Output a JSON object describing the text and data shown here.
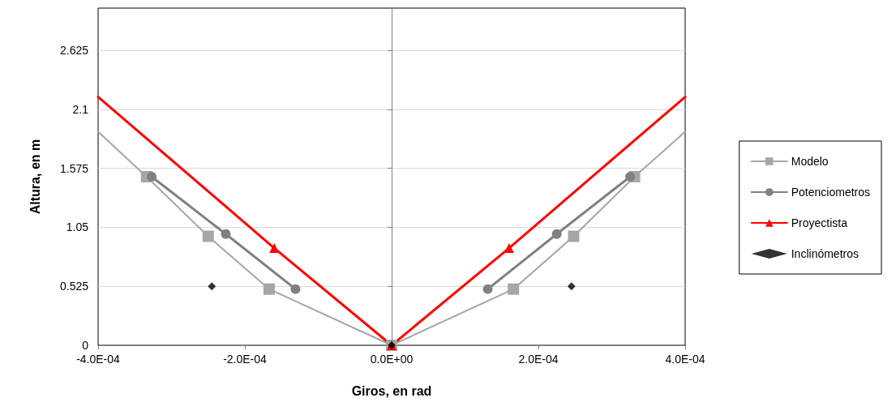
{
  "chart_data": {
    "type": "line",
    "xlabel": "Giros, en rad",
    "ylabel": "Altura, en m",
    "xlim": [
      -0.0004,
      0.0004
    ],
    "xticks": [
      {
        "value": -0.0004,
        "label": "-4.0E-04"
      },
      {
        "value": -0.0002,
        "label": "-2.0E-04"
      },
      {
        "value": 0,
        "label": "0.0E+00"
      },
      {
        "value": 0.0002,
        "label": "2.0E-04"
      },
      {
        "value": 0.0004,
        "label": "4.0E-04"
      }
    ],
    "ylim": [
      0,
      3
    ],
    "yticks": [
      0,
      0.525,
      1.05,
      1.575,
      2.1,
      2.625
    ],
    "grid": "y",
    "legend": "right",
    "ref_lines": [
      {
        "axis": "x",
        "value": 0,
        "color": "#808080"
      }
    ],
    "series": [
      {
        "name": "Modelo",
        "marker": "square",
        "color": "#a6a6a6",
        "x": [
          -0.000334,
          -0.00025,
          -0.000167,
          0,
          0.000166,
          0.000248,
          0.000331
        ],
        "values": [
          1.5,
          0.97,
          0.5,
          0,
          0.5,
          0.97,
          1.5
        ]
      },
      {
        "marker": "none",
        "color": "#a6a6a6",
        "x": [
          -0.0004,
          -0.000334,
          0,
          0.000331,
          0.0004
        ],
        "values": [
          1.9,
          1.5,
          null,
          1.5,
          1.9
        ]
      },
      {
        "name": "Potenciometros",
        "marker": "circle",
        "color": "#808080",
        "x": [
          -0.000327,
          -0.000226,
          -0.000131,
          0,
          0.000131,
          0.000225,
          0.000325
        ],
        "values": [
          1.5,
          0.99,
          0.5,
          null,
          0.5,
          0.99,
          1.5
        ]
      },
      {
        "name": "Proyectista",
        "marker": "triangle",
        "color": "#ff0000",
        "x": [
          -0.00016,
          0,
          0.00016
        ],
        "values": [
          0.865,
          0,
          0.865
        ]
      },
      {
        "marker": "none",
        "color": "#ff0000",
        "x": [
          -0.0004,
          -0.00016,
          0,
          0.00016,
          0.0004
        ],
        "values": [
          2.21,
          0.865,
          null,
          0.865,
          2.21
        ]
      },
      {
        "name": "Inclinómetros",
        "type": "scatter",
        "marker": "diamond",
        "color": "#000000",
        "x": [
          -0.000245,
          0,
          0.000245
        ],
        "values": [
          0.525,
          0,
          0.525
        ]
      }
    ]
  }
}
